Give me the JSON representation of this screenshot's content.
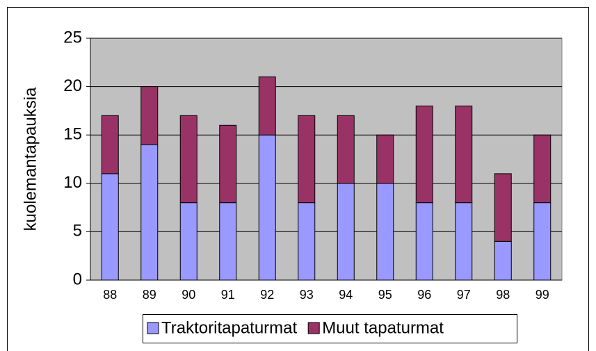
{
  "chart_data": {
    "type": "stacked_bar",
    "y_label": "kuolemantapauksia",
    "categories": [
      "88",
      "89",
      "90",
      "91",
      "92",
      "93",
      "94",
      "95",
      "96",
      "97",
      "98",
      "99"
    ],
    "series": [
      {
        "name": "Traktoritapaturmat",
        "color": "#9999ff",
        "values": [
          11,
          14,
          8,
          8,
          15,
          8,
          10,
          10,
          8,
          8,
          4,
          8
        ]
      },
      {
        "name": "Muut tapaturmat",
        "color": "#993366",
        "values": [
          6,
          6,
          9,
          8,
          6,
          9,
          7,
          5,
          10,
          10,
          7,
          7
        ]
      }
    ],
    "ylim": [
      0,
      25
    ],
    "yticks": [
      0,
      5,
      10,
      15,
      20,
      25
    ],
    "grid": true,
    "legend": "bottom"
  }
}
